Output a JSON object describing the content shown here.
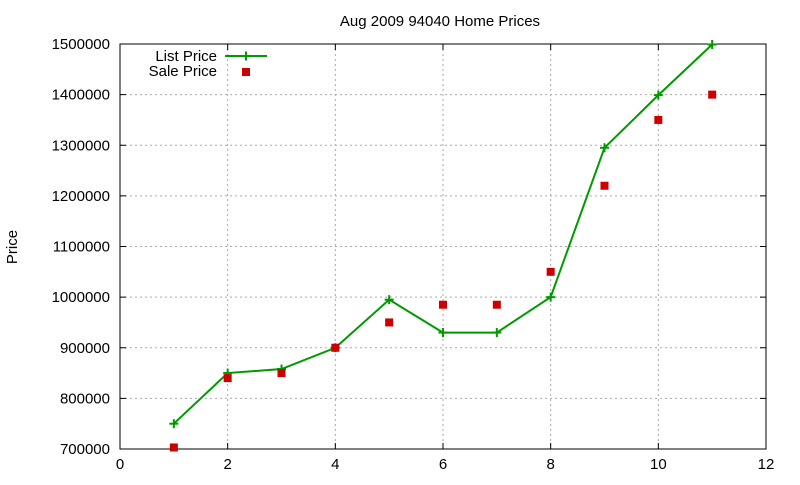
{
  "chart_data": {
    "type": "line",
    "title": "Aug 2009 94040 Home Prices",
    "xlabel": "",
    "ylabel": "Price",
    "xlim": [
      0,
      12
    ],
    "ylim": [
      700000,
      1500000
    ],
    "x_ticks": [
      0,
      2,
      4,
      6,
      8,
      10,
      12
    ],
    "y_ticks": [
      700000,
      800000,
      900000,
      1000000,
      1100000,
      1200000,
      1300000,
      1400000,
      1500000
    ],
    "grid": true,
    "legend_position": "top-left",
    "series": [
      {
        "name": "List Price",
        "style": "line-with-plus-markers",
        "color": "#009900",
        "x": [
          1,
          2,
          3,
          4,
          5,
          6,
          7,
          8,
          9,
          10,
          11
        ],
        "values": [
          750000,
          850000,
          858000,
          900000,
          995000,
          930000,
          930000,
          1000000,
          1295000,
          1399000,
          1499000
        ]
      },
      {
        "name": "Sale Price",
        "style": "square-markers",
        "color": "#cc0000",
        "x": [
          1,
          2,
          3,
          4,
          5,
          6,
          7,
          8,
          9,
          10,
          11
        ],
        "values": [
          703000,
          840000,
          850000,
          900000,
          950000,
          985000,
          985000,
          1050000,
          1220000,
          1350000,
          1400000
        ]
      }
    ]
  }
}
